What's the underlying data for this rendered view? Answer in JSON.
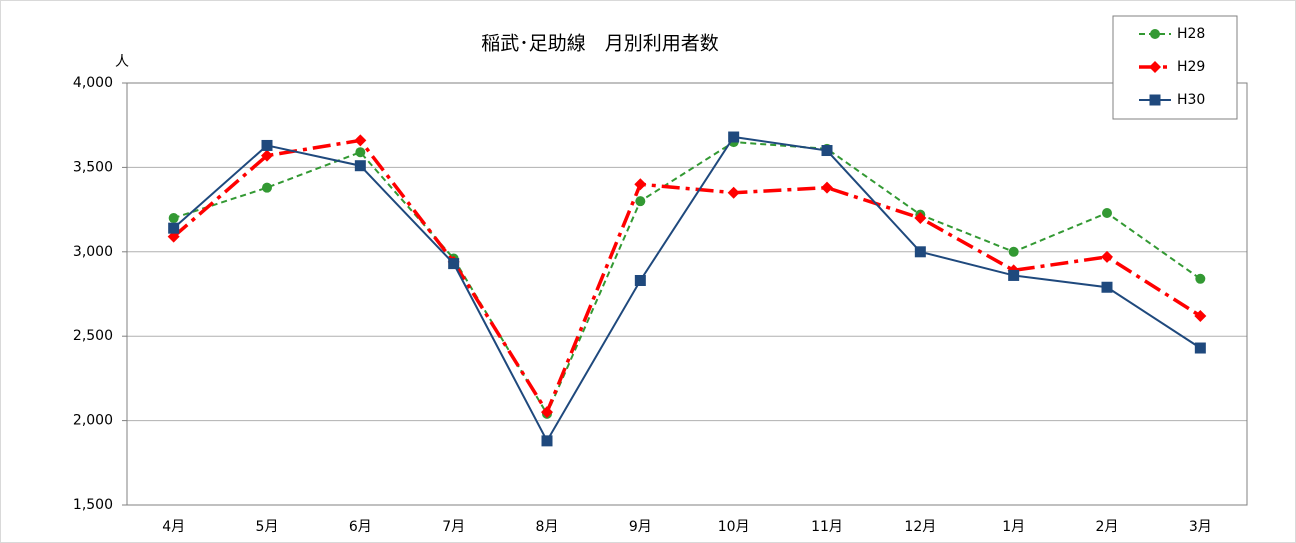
{
  "chart_data": {
    "type": "line",
    "title": "稲武･足助線　月別利用者数",
    "y_label": "人",
    "categories": [
      "4月",
      "5月",
      "6月",
      "7月",
      "8月",
      "9月",
      "10月",
      "11月",
      "12月",
      "1月",
      "2月",
      "3月"
    ],
    "series": [
      {
        "name": "H28",
        "color": "#339933",
        "marker": "circle",
        "line_style": "dashed",
        "values": [
          3200,
          3380,
          3590,
          2960,
          2040,
          3300,
          3650,
          3610,
          3220,
          3000,
          3230,
          2840
        ]
      },
      {
        "name": "H29",
        "color": "#ff0000",
        "marker": "diamond",
        "line_style": "dashdot",
        "values": [
          3090,
          3570,
          3660,
          2940,
          2050,
          3400,
          3350,
          3380,
          3200,
          2890,
          2970,
          2620
        ]
      },
      {
        "name": "H30",
        "color": "#1f497d",
        "marker": "square",
        "line_style": "solid",
        "values": [
          3140,
          3630,
          3510,
          2930,
          1880,
          2830,
          3680,
          3600,
          3000,
          2860,
          2790,
          2430
        ]
      }
    ],
    "ylim": [
      1500,
      4000
    ],
    "yticks": [
      {
        "value": 1500,
        "label": "1,500"
      },
      {
        "value": 2000,
        "label": "2,000"
      },
      {
        "value": 2500,
        "label": "2,500"
      },
      {
        "value": 3000,
        "label": "3,000"
      },
      {
        "value": 3500,
        "label": "3,500"
      },
      {
        "value": 4000,
        "label": "4,000"
      }
    ],
    "grid": true,
    "legend": "top-right"
  }
}
